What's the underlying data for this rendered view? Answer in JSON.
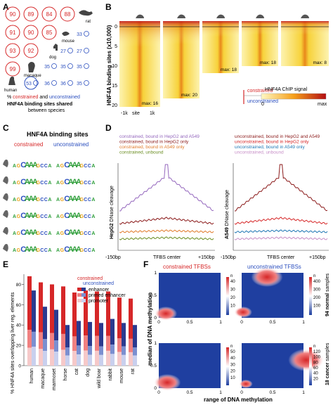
{
  "panels": {
    "A": "A",
    "B": "B",
    "C": "C",
    "D": "D",
    "E": "E",
    "F": "F"
  },
  "panel_a": {
    "circles": [
      {
        "value": "90",
        "color": "#d62728"
      },
      {
        "value": "89",
        "color": "#d62728"
      },
      {
        "value": "84",
        "color": "#d62728"
      },
      {
        "value": "88",
        "color": "#d62728"
      },
      {
        "value": "91",
        "color": "#d62728"
      },
      {
        "value": "90",
        "color": "#d62728"
      },
      {
        "value": "85",
        "color": "#d62728"
      },
      {
        "value": "93",
        "color": "#d62728"
      },
      {
        "value": "92",
        "color": "#d62728"
      },
      {
        "value": "99",
        "color": "#d62728"
      }
    ],
    "blue": [
      {
        "value": "33",
        "color": "#2b4fbf"
      },
      {
        "value": "27",
        "color": "#2b4fbf"
      },
      {
        "value": "27",
        "color": "#2b4fbf"
      },
      {
        "value": "35",
        "color": "#2b4fbf"
      },
      {
        "value": "35",
        "color": "#2b4fbf"
      },
      {
        "value": "35",
        "color": "#2b4fbf"
      },
      {
        "value": "53",
        "color": "#2b4fbf"
      },
      {
        "value": "36",
        "color": "#2b4fbf"
      },
      {
        "value": "36",
        "color": "#2b4fbf"
      },
      {
        "value": "35",
        "color": "#2b4fbf"
      }
    ],
    "species_labels": {
      "rat": "rat",
      "mouse": "mouse",
      "dog": "dog",
      "macaque": "macaque",
      "human": "human"
    },
    "caption": {
      "pct": "% ",
      "constrained": "constrained",
      "and": " and ",
      "unconstrained": "unconstrained",
      "line2": "HNF4A binding sites shared",
      "line3": "between species"
    }
  },
  "panel_b": {
    "ylabel": "HNF4A binding sites (x10,000)",
    "yticks": [
      "0",
      "5",
      "10",
      "15",
      "20"
    ],
    "xticks": [
      "-1k",
      "site",
      "1k"
    ],
    "max_labels": [
      "max: 16",
      "max: 20",
      "max: 18",
      "max: 18",
      "max: 8"
    ],
    "legend_constrained": "constrained",
    "legend_unconstrained": "unconstrained",
    "colorbar_title": "HNF4A ChIP signal",
    "colorbar_min": "0",
    "colorbar_max": "max"
  },
  "panel_c": {
    "title": "HNF4A binding sites",
    "constrained": "constrained",
    "unconstrained": "unconstrained",
    "motif_c": [
      "AGCAAAGCCA",
      "AGCAAAGCCA",
      "AGCAAAGCCA",
      "AGCAAAGCCA",
      "AGCAAAGCCA",
      "AGCAAAGCCA"
    ],
    "motif_u": [
      "AGCAAAGCCA",
      "AGCAAAGCCA",
      "AGCAAAGCCA",
      "AGCAAAGCCA",
      "AGCAAAGCCA",
      "AGCAAAGCCA"
    ]
  },
  "panel_d": {
    "legend_left": [
      "constrained, bound in HepG2 and A549",
      "constrained, bound in HepG2 only",
      "constrained, bound in A549 only",
      "constrained, unbound"
    ],
    "legend_right": [
      "unconstrained, bound in HepG2 and A549",
      "unconstrained, bound in HepG2 only",
      "unconstrained, bound in A549 only",
      "unconstrained, unbound"
    ],
    "colors_left": [
      "#9467bd",
      "#8b1a1a",
      "#e07b2b",
      "#6b8e23"
    ],
    "colors_right": [
      "#8b1a1a",
      "#d62728",
      "#1f77b4",
      "#c78fc7"
    ],
    "ylabel_left_bold": "HepG2",
    "ylabel_left": " DNase cleavage",
    "ylabel_right_bold": "A549",
    "ylabel_right": " DNase cleavage",
    "xticks": [
      "-150bp",
      "TFBS center",
      "+150bp"
    ]
  },
  "panel_e": {
    "ylabel": "% HNF4A sites overlapping liver reg. elements",
    "yticks": [
      "0",
      "20",
      "40",
      "60",
      "80"
    ],
    "legend_constrained": "constrained",
    "legend_unconstrained": "unconstrained",
    "legend_items": [
      "enhancer",
      "primed enhancer",
      "promoter"
    ],
    "chart_data": {
      "type": "bar",
      "categories": [
        "human",
        "macaque",
        "marmoset",
        "horse",
        "cat",
        "dog",
        "wild boar",
        "rabbit",
        "mouse",
        "rat"
      ],
      "series": [
        {
          "name": "constrained",
          "values": [
            88,
            82,
            80,
            78,
            72,
            74,
            73,
            73,
            67,
            66
          ]
        },
        {
          "name": "unconstrained",
          "values": [
            74,
            58,
            55,
            40,
            44,
            43,
            42,
            46,
            42,
            40
          ]
        }
      ],
      "ylim": [
        0,
        90
      ]
    }
  },
  "panel_f": {
    "title_left": "constrained TFBSs",
    "title_right": "unconstrained TFBSs",
    "ylabel": "median of DNA methylation",
    "xlabel": "range of DNA methylation",
    "row1_label_bold": "94 normal",
    "row1_label": " samples",
    "row2_label_bold": "18 cancer",
    "row2_label": " samples",
    "axis_ticks": [
      "0",
      "0.5",
      "1"
    ],
    "n_label": "n",
    "cb_top_left": [
      "40",
      "30",
      "20",
      "10"
    ],
    "cb_top_right": [
      "400",
      "300",
      "200",
      "100"
    ],
    "cb_bot_left": [
      "50",
      "40",
      "30",
      "20",
      "10"
    ],
    "cb_bot_right": [
      "120",
      "100",
      "80",
      "60",
      "40",
      "20"
    ]
  }
}
